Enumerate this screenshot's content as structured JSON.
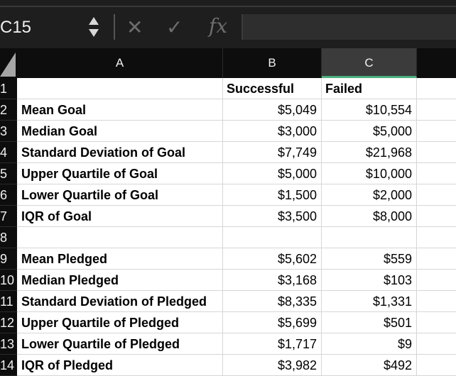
{
  "formula_bar": {
    "name_box": "C15",
    "cancel_icon": "✕",
    "confirm_icon": "✓",
    "fx_label": "fx",
    "formula": ""
  },
  "columns": [
    "A",
    "B",
    "C"
  ],
  "selected_column": "C",
  "rows": [
    {
      "num": "1",
      "a": "",
      "b": "Successful",
      "c": "Failed",
      "header": true
    },
    {
      "num": "2",
      "a": "Mean Goal",
      "b": "$5,049",
      "c": "$10,554"
    },
    {
      "num": "3",
      "a": "Median Goal",
      "b": "$3,000",
      "c": "$5,000"
    },
    {
      "num": "4",
      "a": "Standard Deviation of Goal",
      "b": "$7,749",
      "c": "$21,968"
    },
    {
      "num": "5",
      "a": "Upper Quartile of Goal",
      "b": "$5,000",
      "c": "$10,000"
    },
    {
      "num": "6",
      "a": "Lower Quartile of Goal",
      "b": "$1,500",
      "c": "$2,000"
    },
    {
      "num": "7",
      "a": "IQR of Goal",
      "b": "$3,500",
      "c": "$8,000"
    },
    {
      "num": "8",
      "a": "",
      "b": "",
      "c": ""
    },
    {
      "num": "9",
      "a": "Mean Pledged",
      "b": "$5,602",
      "c": "$559"
    },
    {
      "num": "10",
      "a": "Median Pledged",
      "b": "$3,168",
      "c": "$103"
    },
    {
      "num": "11",
      "a": "Standard Deviation of Pledged",
      "b": "$8,335",
      "c": "$1,331"
    },
    {
      "num": "12",
      "a": "Upper Quartile of Pledged",
      "b": "$5,699",
      "c": "$501"
    },
    {
      "num": "13",
      "a": "Lower Quartile of Pledged",
      "b": "$1,717",
      "c": "$9"
    },
    {
      "num": "14",
      "a": "IQR of Pledged",
      "b": "$3,982",
      "c": "$492"
    }
  ],
  "colors": {
    "accent": "#4caf7d",
    "header_bg": "#0d0d0d",
    "selected_header_bg": "#3b3b3b"
  }
}
